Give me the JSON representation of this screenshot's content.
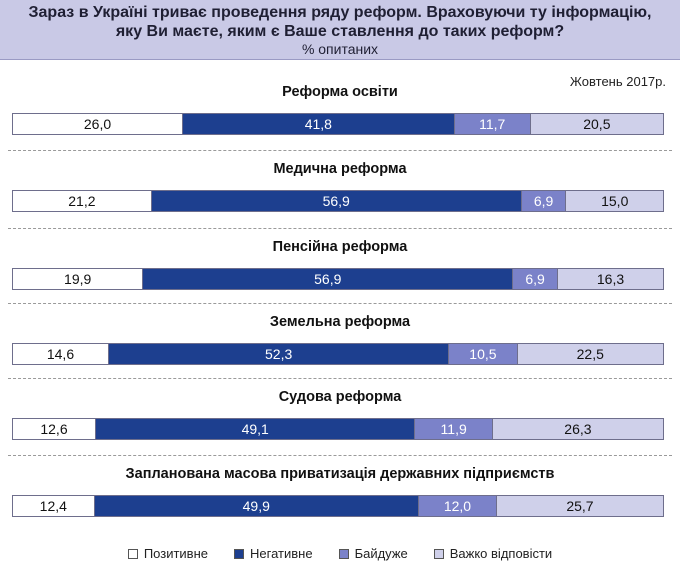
{
  "header": {
    "title_line1": "Зараз в Україні триває проведення ряду реформ. Враховуючи ту інформацію,",
    "title_line2": "яку Ви маєте, яким є Ваше ставлення до таких реформ?",
    "subtitle": "% опитаних"
  },
  "date_label": "Жовтень 2017р.",
  "colors": {
    "positive": "#ffffff",
    "negative": "#1d3f8f",
    "indifferent": "#7b82c9",
    "hard_to_answer": "#cfd0ea",
    "header_bg": "#c9c9e6"
  },
  "chart_data": {
    "type": "bar",
    "orientation": "horizontal",
    "stacked": "100%",
    "title": "Зараз в Україні триває проведення ряду реформ. Враховуючи ту інформацію, яку Ви маєте, яким є Ваше ставлення до таких реформ?",
    "subtitle": "% опитаних",
    "categories": [
      "Реформа освіти",
      "Медична реформа",
      "Пенсійна реформа",
      "Земельна реформа",
      "Судова реформа",
      "Запланована масова приватизація державних підприємств"
    ],
    "series": [
      {
        "name": "Позитивне",
        "key": "positive",
        "values": [
          26.0,
          21.2,
          19.9,
          14.6,
          12.6,
          12.4
        ]
      },
      {
        "name": "Негативне",
        "key": "negative",
        "values": [
          41.8,
          56.9,
          56.9,
          52.3,
          49.1,
          49.9
        ]
      },
      {
        "name": "Байдуже",
        "key": "indifferent",
        "values": [
          11.7,
          6.9,
          6.9,
          10.5,
          11.9,
          12.0
        ]
      },
      {
        "name": "Важко відповісти",
        "key": "hard",
        "values": [
          20.5,
          15.0,
          16.3,
          22.5,
          26.3,
          25.7
        ]
      }
    ],
    "value_labels": [
      [
        "26,0",
        "41,8",
        "11,7",
        "20,5"
      ],
      [
        "21,2",
        "56,9",
        "6,9",
        "15,0"
      ],
      [
        "19,9",
        "56,9",
        "6,9",
        "16,3"
      ],
      [
        "14,6",
        "52,3",
        "10,5",
        "22,5"
      ],
      [
        "12,6",
        "49,1",
        "11,9",
        "26,3"
      ],
      [
        "12,4",
        "49,9",
        "12,0",
        "25,7"
      ]
    ],
    "legend": [
      "Позитивне",
      "Негативне",
      "Байдуже",
      "Важко відповісти"
    ],
    "legend_position": "bottom"
  }
}
